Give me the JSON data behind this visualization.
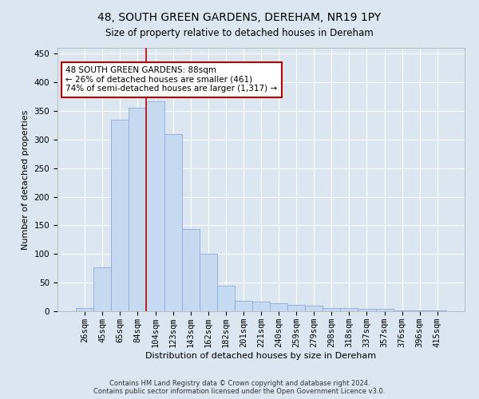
{
  "title": "48, SOUTH GREEN GARDENS, DEREHAM, NR19 1PY",
  "subtitle": "Size of property relative to detached houses in Dereham",
  "xlabel": "Distribution of detached houses by size in Dereham",
  "ylabel": "Number of detached properties",
  "categories": [
    "26sqm",
    "45sqm",
    "65sqm",
    "84sqm",
    "104sqm",
    "123sqm",
    "143sqm",
    "162sqm",
    "182sqm",
    "201sqm",
    "221sqm",
    "240sqm",
    "259sqm",
    "279sqm",
    "298sqm",
    "318sqm",
    "337sqm",
    "357sqm",
    "376sqm",
    "396sqm",
    "415sqm"
  ],
  "values": [
    5,
    76,
    335,
    355,
    367,
    310,
    143,
    100,
    45,
    18,
    17,
    14,
    11,
    10,
    5,
    5,
    4,
    4,
    1,
    1,
    1
  ],
  "bar_color": "#c5d9f1",
  "bar_edge_color": "#8eaadb",
  "vline_color": "#c00000",
  "annotation_text": "48 SOUTH GREEN GARDENS: 88sqm\n← 26% of detached houses are smaller (461)\n74% of semi-detached houses are larger (1,317) →",
  "annotation_box_color": "#c00000",
  "background_color": "#dce6f1",
  "grid_color": "#ffffff",
  "footer_line1": "Contains HM Land Registry data © Crown copyright and database right 2024.",
  "footer_line2": "Contains public sector information licensed under the Open Government Licence v3.0.",
  "ylim": [
    0,
    460
  ],
  "title_fontsize": 10,
  "tick_fontsize": 7.5
}
